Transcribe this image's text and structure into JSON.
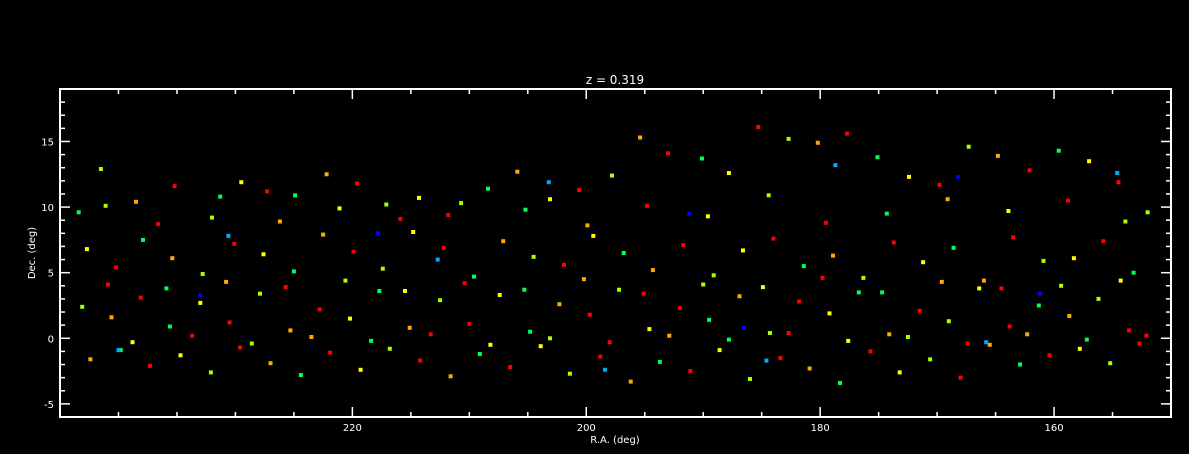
{
  "chart_data": {
    "type": "scatter",
    "title": "z = 0.319",
    "xlabel": "R.A. (deg)",
    "ylabel": "Dec. (deg)",
    "xlim": [
      245,
      150
    ],
    "ylim": [
      -6,
      19
    ],
    "x_reversed": true,
    "grid": false,
    "legend": "none",
    "xticks": [
      220,
      200,
      180,
      160
    ],
    "yticks": [
      -5,
      0,
      5,
      10,
      15
    ],
    "xtick_labels": [
      "220",
      "200",
      "180",
      "160"
    ],
    "ytick_labels": [
      "-5",
      "0",
      "5",
      "10",
      "15"
    ],
    "color_scale": [
      "#0000ff",
      "#00aaff",
      "#00ff55",
      "#aaff00",
      "#ffff00",
      "#ffaa00",
      "#ff0000"
    ],
    "points": [
      [
        243.4,
        9.6,
        2
      ],
      [
        241.1,
        10.1,
        3
      ],
      [
        238.5,
        10.4,
        5
      ],
      [
        235.2,
        11.6,
        6
      ],
      [
        232.0,
        9.2,
        3
      ],
      [
        229.5,
        11.9,
        4
      ],
      [
        227.3,
        11.2,
        6
      ],
      [
        224.9,
        10.9,
        2
      ],
      [
        222.2,
        12.5,
        5
      ],
      [
        219.6,
        11.8,
        6
      ],
      [
        217.1,
        10.2,
        3
      ],
      [
        214.3,
        10.7,
        4
      ],
      [
        211.8,
        9.4,
        6
      ],
      [
        208.4,
        11.4,
        2
      ],
      [
        205.9,
        12.7,
        5
      ],
      [
        203.1,
        10.6,
        4
      ],
      [
        200.6,
        11.3,
        6
      ],
      [
        197.8,
        12.4,
        3
      ],
      [
        195.4,
        15.3,
        5
      ],
      [
        193.0,
        14.1,
        6
      ],
      [
        190.1,
        13.7,
        2
      ],
      [
        187.8,
        12.6,
        4
      ],
      [
        185.3,
        16.1,
        6
      ],
      [
        182.7,
        15.2,
        3
      ],
      [
        180.2,
        14.9,
        5
      ],
      [
        177.7,
        15.6,
        6
      ],
      [
        175.1,
        13.8,
        2
      ],
      [
        172.4,
        12.3,
        4
      ],
      [
        169.8,
        11.7,
        6
      ],
      [
        167.3,
        14.6,
        3
      ],
      [
        164.8,
        13.9,
        5
      ],
      [
        162.1,
        12.8,
        6
      ],
      [
        159.6,
        14.3,
        2
      ],
      [
        157.0,
        13.5,
        4
      ],
      [
        154.5,
        11.9,
        6
      ],
      [
        152.0,
        9.6,
        3
      ],
      [
        242.7,
        6.8,
        4
      ],
      [
        240.2,
        5.4,
        6
      ],
      [
        237.9,
        7.5,
        2
      ],
      [
        235.4,
        6.1,
        5
      ],
      [
        232.8,
        4.9,
        3
      ],
      [
        230.1,
        7.2,
        6
      ],
      [
        227.6,
        6.4,
        4
      ],
      [
        225.0,
        5.1,
        2
      ],
      [
        222.5,
        7.9,
        5
      ],
      [
        219.9,
        6.6,
        6
      ],
      [
        217.4,
        5.3,
        3
      ],
      [
        214.8,
        8.1,
        4
      ],
      [
        212.2,
        6.9,
        6
      ],
      [
        209.6,
        4.7,
        2
      ],
      [
        207.1,
        7.4,
        5
      ],
      [
        204.5,
        6.2,
        3
      ],
      [
        201.9,
        5.6,
        6
      ],
      [
        199.4,
        7.8,
        4
      ],
      [
        196.8,
        6.5,
        2
      ],
      [
        194.3,
        5.2,
        5
      ],
      [
        191.7,
        7.1,
        6
      ],
      [
        189.1,
        4.8,
        3
      ],
      [
        186.6,
        6.7,
        4
      ],
      [
        184.0,
        7.6,
        6
      ],
      [
        181.4,
        5.5,
        2
      ],
      [
        178.9,
        6.3,
        5
      ],
      [
        176.3,
        4.6,
        3
      ],
      [
        173.7,
        7.3,
        6
      ],
      [
        171.2,
        5.8,
        4
      ],
      [
        168.6,
        6.9,
        2
      ],
      [
        166.0,
        4.4,
        5
      ],
      [
        163.5,
        7.7,
        6
      ],
      [
        160.9,
        5.9,
        3
      ],
      [
        158.3,
        6.1,
        4
      ],
      [
        155.8,
        7.4,
        6
      ],
      [
        153.2,
        5.0,
        2
      ],
      [
        243.1,
        2.4,
        3
      ],
      [
        240.6,
        1.6,
        5
      ],
      [
        238.1,
        3.1,
        6
      ],
      [
        235.6,
        0.9,
        2
      ],
      [
        233.0,
        2.7,
        4
      ],
      [
        230.5,
        1.2,
        6
      ],
      [
        227.9,
        3.4,
        3
      ],
      [
        225.3,
        0.6,
        5
      ],
      [
        222.8,
        2.2,
        6
      ],
      [
        220.2,
        1.5,
        4
      ],
      [
        217.7,
        3.6,
        2
      ],
      [
        215.1,
        0.8,
        5
      ],
      [
        212.5,
        2.9,
        3
      ],
      [
        210.0,
        1.1,
        6
      ],
      [
        207.4,
        3.3,
        4
      ],
      [
        204.8,
        0.5,
        2
      ],
      [
        202.3,
        2.6,
        5
      ],
      [
        199.7,
        1.8,
        6
      ],
      [
        197.2,
        3.7,
        3
      ],
      [
        194.6,
        0.7,
        4
      ],
      [
        192.0,
        2.3,
        6
      ],
      [
        189.5,
        1.4,
        2
      ],
      [
        186.9,
        3.2,
        5
      ],
      [
        184.3,
        0.4,
        3
      ],
      [
        181.8,
        2.8,
        6
      ],
      [
        179.2,
        1.9,
        4
      ],
      [
        176.7,
        3.5,
        2
      ],
      [
        174.1,
        0.3,
        5
      ],
      [
        171.5,
        2.1,
        6
      ],
      [
        169.0,
        1.3,
        3
      ],
      [
        166.4,
        3.8,
        4
      ],
      [
        163.8,
        0.9,
        6
      ],
      [
        161.3,
        2.5,
        2
      ],
      [
        158.7,
        1.7,
        5
      ],
      [
        156.2,
        3.0,
        3
      ],
      [
        153.6,
        0.6,
        6
      ],
      [
        242.4,
        -1.6,
        5
      ],
      [
        239.8,
        -0.9,
        2
      ],
      [
        237.3,
        -2.1,
        6
      ],
      [
        234.7,
        -1.3,
        4
      ],
      [
        232.1,
        -2.6,
        3
      ],
      [
        229.6,
        -0.7,
        6
      ],
      [
        227.0,
        -1.9,
        5
      ],
      [
        224.4,
        -2.8,
        2
      ],
      [
        221.9,
        -1.1,
        6
      ],
      [
        219.3,
        -2.4,
        4
      ],
      [
        216.8,
        -0.8,
        3
      ],
      [
        214.2,
        -1.7,
        6
      ],
      [
        211.6,
        -2.9,
        5
      ],
      [
        209.1,
        -1.2,
        2
      ],
      [
        206.5,
        -2.2,
        6
      ],
      [
        203.9,
        -0.6,
        4
      ],
      [
        201.4,
        -2.7,
        3
      ],
      [
        198.8,
        -1.4,
        6
      ],
      [
        196.2,
        -3.3,
        5
      ],
      [
        193.7,
        -1.8,
        2
      ],
      [
        191.1,
        -2.5,
        6
      ],
      [
        188.6,
        -0.9,
        4
      ],
      [
        186.0,
        -3.1,
        3
      ],
      [
        183.4,
        -1.5,
        6
      ],
      [
        180.9,
        -2.3,
        5
      ],
      [
        178.3,
        -3.4,
        2
      ],
      [
        175.7,
        -1.0,
        6
      ],
      [
        173.2,
        -2.6,
        4
      ],
      [
        170.6,
        -1.6,
        3
      ],
      [
        168.0,
        -3.0,
        6
      ],
      [
        165.5,
        -0.5,
        5
      ],
      [
        162.9,
        -2.0,
        2
      ],
      [
        160.4,
        -1.3,
        6
      ],
      [
        157.8,
        -0.8,
        4
      ],
      [
        155.2,
        -1.9,
        3
      ],
      [
        152.7,
        -0.4,
        6
      ],
      [
        241.5,
        12.9,
        3
      ],
      [
        236.6,
        8.7,
        6
      ],
      [
        231.3,
        10.8,
        2
      ],
      [
        226.2,
        8.9,
        5
      ],
      [
        221.1,
        9.9,
        4
      ],
      [
        215.9,
        9.1,
        6
      ],
      [
        210.7,
        10.3,
        3
      ],
      [
        205.2,
        9.8,
        2
      ],
      [
        199.9,
        8.6,
        5
      ],
      [
        194.8,
        10.1,
        6
      ],
      [
        189.6,
        9.3,
        4
      ],
      [
        184.4,
        10.9,
        3
      ],
      [
        179.5,
        8.8,
        6
      ],
      [
        174.3,
        9.5,
        2
      ],
      [
        169.1,
        10.6,
        5
      ],
      [
        163.9,
        9.7,
        4
      ],
      [
        158.8,
        10.5,
        6
      ],
      [
        153.9,
        8.9,
        3
      ],
      [
        240.9,
        4.1,
        6
      ],
      [
        235.9,
        3.8,
        2
      ],
      [
        230.8,
        4.3,
        5
      ],
      [
        225.7,
        3.9,
        6
      ],
      [
        220.6,
        4.4,
        3
      ],
      [
        215.5,
        3.6,
        4
      ],
      [
        210.4,
        4.2,
        6
      ],
      [
        205.3,
        3.7,
        2
      ],
      [
        200.2,
        4.5,
        5
      ],
      [
        195.1,
        3.4,
        6
      ],
      [
        190.0,
        4.1,
        3
      ],
      [
        184.9,
        3.9,
        4
      ],
      [
        179.8,
        4.6,
        6
      ],
      [
        174.7,
        3.5,
        2
      ],
      [
        169.6,
        4.3,
        5
      ],
      [
        164.5,
        3.8,
        6
      ],
      [
        159.4,
        4.0,
        3
      ],
      [
        154.3,
        4.4,
        4
      ],
      [
        238.8,
        -0.3,
        4
      ],
      [
        233.7,
        0.2,
        6
      ],
      [
        228.6,
        -0.4,
        3
      ],
      [
        223.5,
        0.1,
        5
      ],
      [
        218.4,
        -0.2,
        2
      ],
      [
        213.3,
        0.3,
        6
      ],
      [
        208.2,
        -0.5,
        4
      ],
      [
        203.1,
        0.0,
        3
      ],
      [
        198.0,
        -0.3,
        6
      ],
      [
        192.9,
        0.2,
        5
      ],
      [
        187.8,
        -0.1,
        2
      ],
      [
        182.7,
        0.4,
        6
      ],
      [
        177.6,
        -0.2,
        4
      ],
      [
        172.5,
        0.1,
        3
      ],
      [
        167.4,
        -0.4,
        6
      ],
      [
        162.3,
        0.3,
        5
      ],
      [
        157.2,
        -0.1,
        2
      ],
      [
        152.1,
        0.2,
        6
      ],
      [
        217.8,
        8.0,
        0
      ],
      [
        168.2,
        12.3,
        0
      ],
      [
        186.5,
        0.8,
        0
      ],
      [
        161.2,
        3.4,
        0
      ],
      [
        233.0,
        3.3,
        0
      ],
      [
        198.4,
        -2.4,
        1
      ],
      [
        178.7,
        13.2,
        1
      ],
      [
        230.6,
        7.8,
        1
      ],
      [
        165.8,
        -0.3,
        1
      ],
      [
        203.2,
        11.9,
        1
      ],
      [
        184.6,
        -1.7,
        1
      ],
      [
        154.6,
        12.6,
        1
      ],
      [
        212.7,
        6.0,
        1
      ],
      [
        191.2,
        9.5,
        0
      ],
      [
        240.0,
        -0.9,
        1
      ]
    ]
  }
}
